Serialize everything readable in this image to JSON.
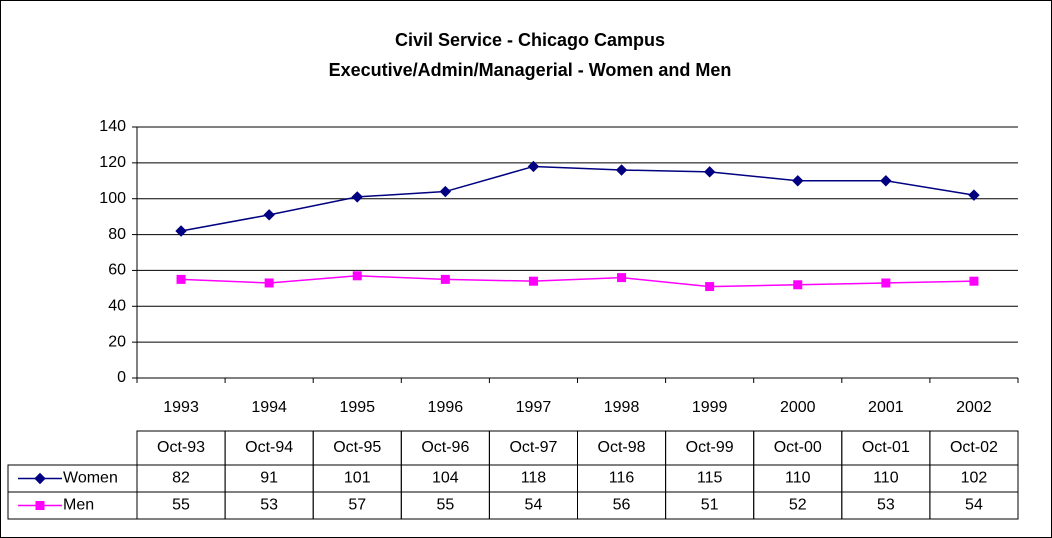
{
  "chart_data": {
    "type": "line",
    "title": "Civil Service - Chicago Campus",
    "subtitle": "Executive/Admin/Managerial - Women and Men",
    "categories": [
      "1993",
      "1994",
      "1995",
      "1996",
      "1997",
      "1998",
      "1999",
      "2000",
      "2001",
      "2002"
    ],
    "table_header": [
      "Oct-93",
      "Oct-94",
      "Oct-95",
      "Oct-96",
      "Oct-97",
      "Oct-98",
      "Oct-99",
      "Oct-00",
      "Oct-01",
      "Oct-02"
    ],
    "series": [
      {
        "name": "Women",
        "color": "#000080",
        "marker": "diamond",
        "values": [
          82,
          91,
          101,
          104,
          118,
          116,
          115,
          110,
          110,
          102
        ]
      },
      {
        "name": "Men",
        "color": "#ff00ff",
        "marker": "square",
        "values": [
          55,
          53,
          57,
          55,
          54,
          56,
          51,
          52,
          53,
          54
        ]
      }
    ],
    "ylim": [
      0,
      140
    ],
    "yticks": [
      0,
      20,
      40,
      60,
      80,
      100,
      120,
      140
    ],
    "grid": true
  }
}
